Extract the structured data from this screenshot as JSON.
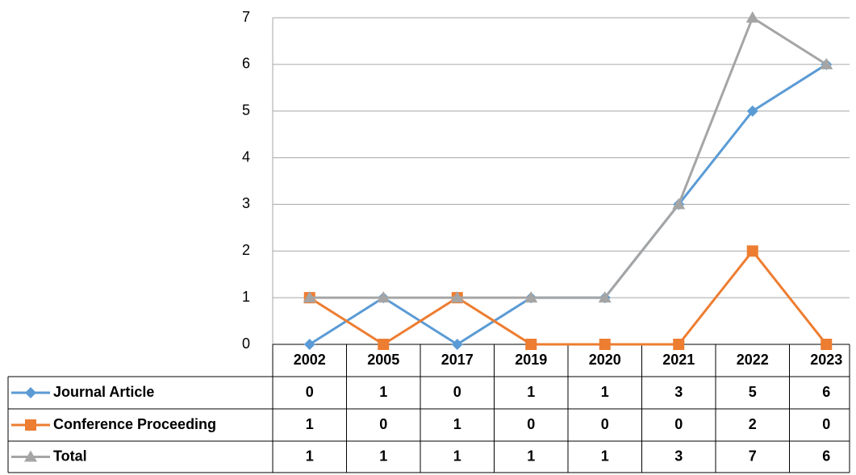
{
  "chart_data": {
    "type": "line",
    "categories": [
      "2002",
      "2005",
      "2017",
      "2019",
      "2020",
      "2021",
      "2022",
      "2023"
    ],
    "series": [
      {
        "name": "Journal Article",
        "color": "#5b9bd5",
        "marker": "diamond",
        "values": [
          0,
          1,
          0,
          1,
          1,
          3,
          5,
          6
        ]
      },
      {
        "name": "Conference Proceeding",
        "color": "#ed7d31",
        "marker": "square",
        "values": [
          1,
          0,
          1,
          0,
          0,
          0,
          2,
          0
        ]
      },
      {
        "name": "Total",
        "color": "#a5a5a5",
        "marker": "triangle",
        "values": [
          1,
          1,
          1,
          1,
          1,
          3,
          7,
          6
        ]
      }
    ],
    "ylim": [
      0,
      7
    ],
    "yticks": [
      0,
      1,
      2,
      3,
      4,
      5,
      6,
      7
    ],
    "grid": true,
    "data_table": true
  }
}
